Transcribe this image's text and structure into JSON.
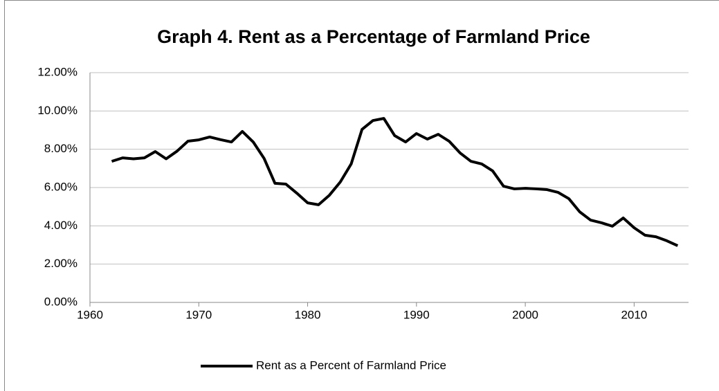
{
  "chart_data": {
    "type": "line",
    "title": "Graph 4. Rent as a Percentage of Farmland Price",
    "x": [
      1962,
      1963,
      1964,
      1965,
      1966,
      1967,
      1968,
      1969,
      1970,
      1971,
      1972,
      1973,
      1974,
      1975,
      1976,
      1977,
      1978,
      1979,
      1980,
      1981,
      1982,
      1983,
      1984,
      1985,
      1986,
      1987,
      1988,
      1989,
      1990,
      1991,
      1992,
      1993,
      1994,
      1995,
      1996,
      1997,
      1998,
      1999,
      2000,
      2001,
      2002,
      2003,
      2004,
      2005,
      2006,
      2007,
      2008,
      2009,
      2010,
      2011,
      2012,
      2013,
      2014
    ],
    "series": [
      {
        "name": "Rent as a Percent of Farmland Price",
        "color": "#000000",
        "values": [
          7.37,
          7.55,
          7.5,
          7.55,
          7.88,
          7.5,
          7.9,
          8.42,
          8.49,
          8.64,
          8.5,
          8.38,
          8.93,
          8.38,
          7.52,
          6.22,
          6.18,
          5.71,
          5.2,
          5.1,
          5.6,
          6.29,
          7.23,
          9.04,
          9.5,
          9.61,
          8.71,
          8.38,
          8.82,
          8.53,
          8.78,
          8.42,
          7.81,
          7.37,
          7.23,
          6.87,
          6.07,
          5.93,
          5.96,
          5.93,
          5.89,
          5.75,
          5.42,
          4.73,
          4.3,
          4.16,
          3.98,
          4.41,
          3.9,
          3.51,
          3.43,
          3.22,
          2.96
        ]
      }
    ],
    "xlim": [
      1960,
      2015
    ],
    "xticks": [
      1960,
      1970,
      1980,
      1990,
      2000,
      2010
    ],
    "ylim": [
      0,
      12
    ],
    "yticks": [
      {
        "value": 0,
        "label": "0.00%"
      },
      {
        "value": 2,
        "label": "2.00%"
      },
      {
        "value": 4,
        "label": "4.00%"
      },
      {
        "value": 6,
        "label": "6.00%"
      },
      {
        "value": 8,
        "label": "8.00%"
      },
      {
        "value": 10,
        "label": "10.00%"
      },
      {
        "value": 12,
        "label": "12.00%"
      }
    ],
    "grid": true,
    "legend": "bottom"
  }
}
